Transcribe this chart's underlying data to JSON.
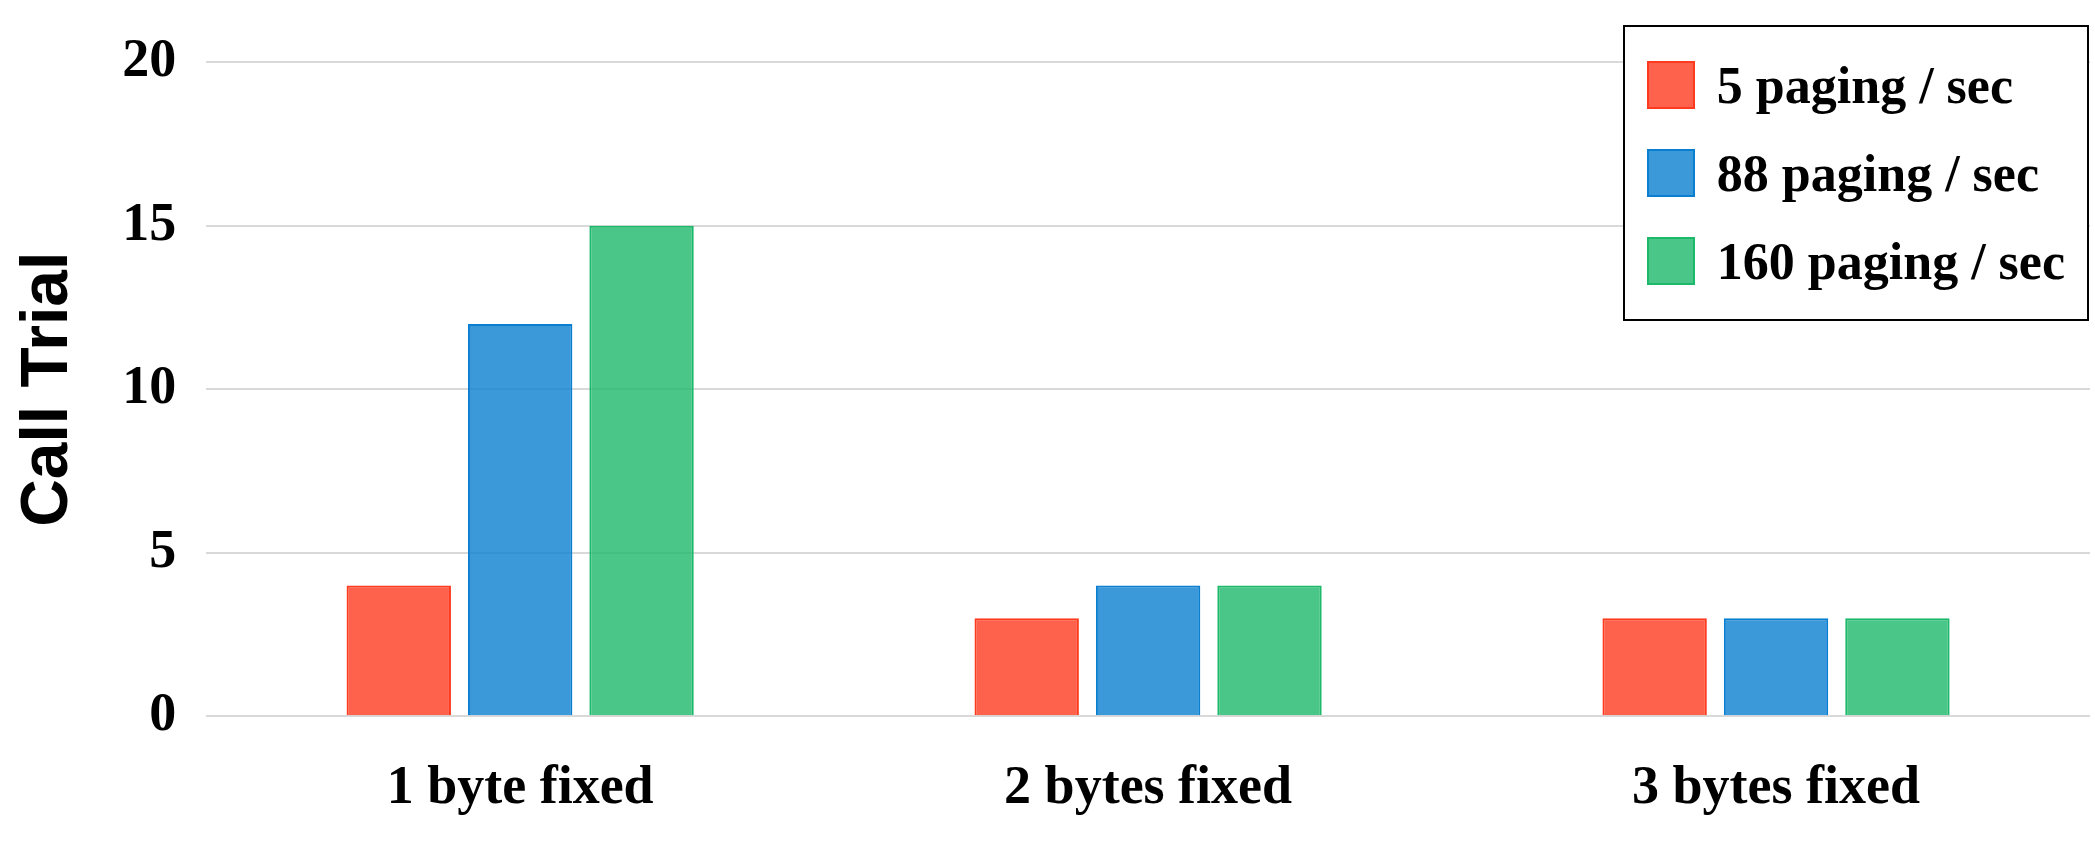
{
  "chart_data": {
    "type": "bar",
    "ylabel": "Call Trial",
    "categories": [
      "1 byte fixed",
      "2 bytes fixed",
      "3 bytes fixed"
    ],
    "series": [
      {
        "name": "5 paging / sec",
        "color": "#ff3b1f",
        "values": [
          4,
          3,
          3
        ]
      },
      {
        "name": "88 paging / sec",
        "color": "#0a7fd0",
        "values": [
          12,
          4,
          3
        ]
      },
      {
        "name": "160 paging / sec",
        "color": "#1db96a",
        "values": [
          15,
          4,
          3
        ]
      }
    ],
    "ylim": [
      0,
      20
    ],
    "yticks": [
      0,
      5,
      10,
      15,
      20
    ],
    "grid": "y",
    "legend": "top right"
  }
}
